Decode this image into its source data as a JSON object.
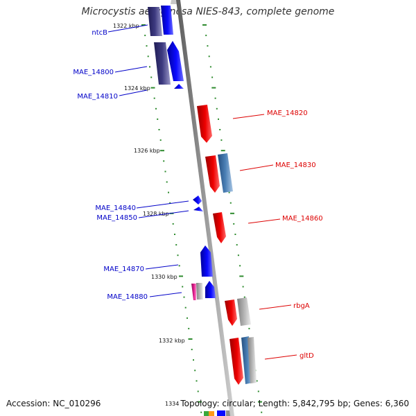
{
  "title": "Microcystis aeruginosa NIES-843, complete genome",
  "accession_label": "Accession: NC_010296",
  "summary_label": "Topology: circular; Length: 5,842,795 bp; Genes: 6,360",
  "colors": {
    "background": "#ffffff",
    "backbone": "#8c8c8c",
    "tick": "#2e8b2e",
    "forward_gene": "#0a0aff",
    "forward_label": "#0000c8",
    "reverse_gene": "#ee0000",
    "reverse_label": "#dd0000",
    "dark_gene": "#3d3a80",
    "steel_gene": "#4a7fb5",
    "grey_gene": "#b4b4b4",
    "magenta_gene": "#e0198c"
  },
  "scale_labels": [
    "1322 kbp",
    "1324 kbp",
    "1326 kbp",
    "1328 kbp",
    "1330 kbp",
    "1332 kbp",
    "1334"
  ],
  "gene_labels_left": [
    "ntcB",
    "MAE_14800",
    "MAE_14810",
    "MAE_14840",
    "MAE_14850",
    "MAE_14870",
    "MAE_14880"
  ],
  "gene_labels_right": [
    "MAE_14820",
    "MAE_14830",
    "MAE_14860",
    "rbgA",
    "gltD"
  ]
}
